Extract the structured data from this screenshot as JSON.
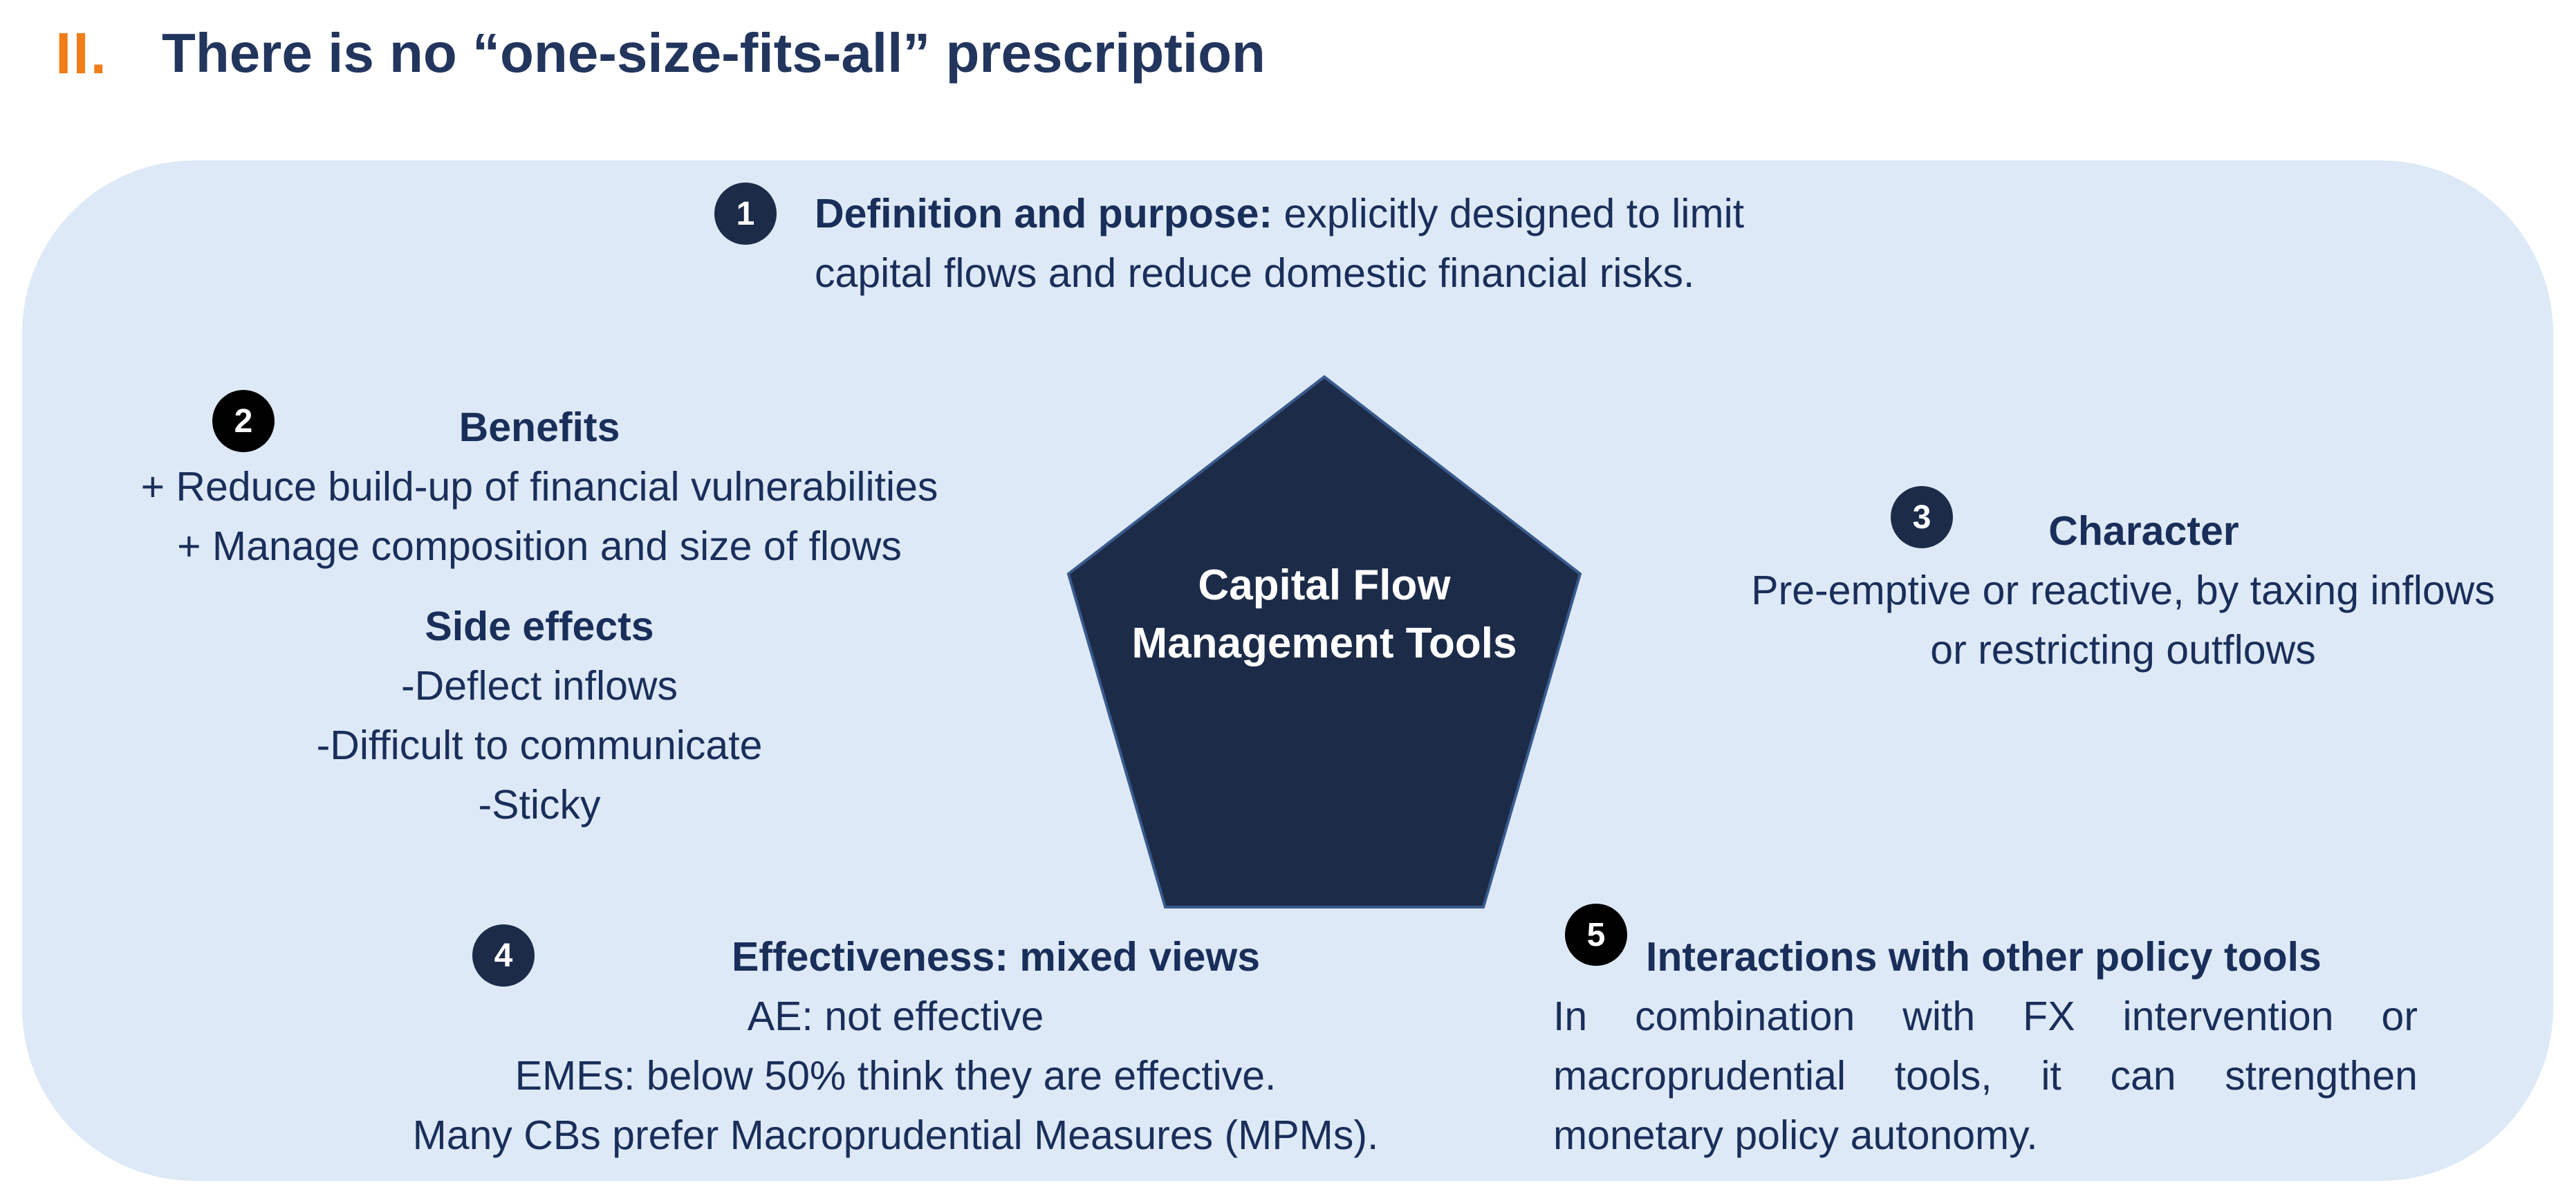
{
  "title": {
    "number": "II.",
    "text": "There is no “one-size-fits-all” prescription"
  },
  "center": {
    "line1": "Capital Flow",
    "line2": "Management Tools"
  },
  "items": [
    {
      "badge": "1",
      "heading": "Definition and purpose:",
      "line1_rest": " explicitly designed to limit",
      "line2": "capital flows and reduce domestic financial risks."
    },
    {
      "badge": "2",
      "heading": "Benefits",
      "benefit1": "+ Reduce build-up of financial vulnerabilities",
      "benefit2": "+ Manage composition and size of flows",
      "side_heading": "Side effects",
      "side1": "-Deflect inflows",
      "side2": "-Difficult to communicate",
      "side3": "-Sticky"
    },
    {
      "badge": "3",
      "heading": "Character",
      "line1": "Pre-emptive or reactive, by taxing inflows",
      "line2": "or restricting outflows"
    },
    {
      "badge": "4",
      "heading": "Effectiveness: mixed views",
      "line1": "AE: not effective",
      "line2": "EMEs: below 50% think they are effective.",
      "line3": "Many CBs prefer Macroprudential Measures (MPMs)."
    },
    {
      "badge": "5",
      "heading": "Interactions with other policy tools",
      "line1": "In combination with FX intervention or",
      "line2": "macroprudential tools, it can strengthen",
      "line3": "monetary policy autonomy."
    }
  ],
  "colors": {
    "accent": "#f07d1a",
    "panel": "#dde9f6",
    "navy": "#1c2b48",
    "text": "#1a2e5a"
  }
}
